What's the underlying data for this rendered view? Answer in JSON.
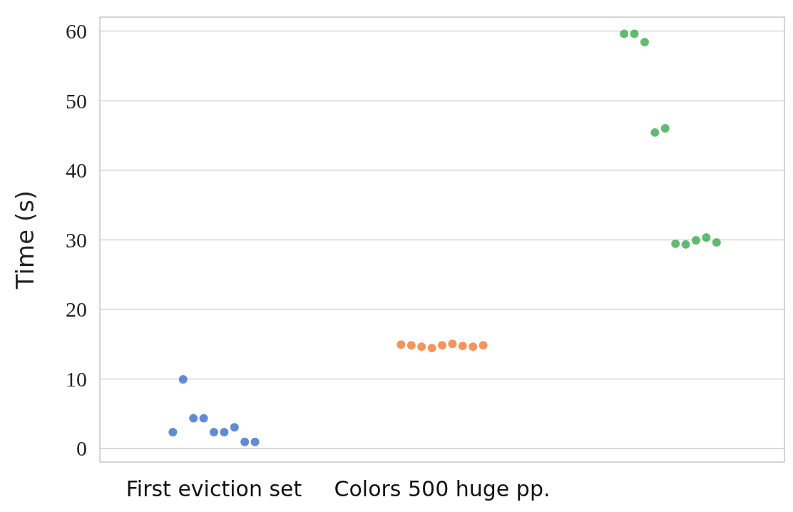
{
  "chart_data": {
    "type": "scatter",
    "ylabel": "Time (s)",
    "categories": [
      "First eviction set",
      "Colors 500 huge pp.",
      null
    ],
    "series": [
      {
        "color": "#3a6fc9",
        "x": [
          "First eviction set",
          "First eviction set",
          "First eviction set",
          "First eviction set",
          "First eviction set",
          "First eviction set",
          "First eviction set",
          "First eviction set",
          "First eviction set"
        ],
        "values": [
          2.3,
          9.9,
          4.3,
          4.3,
          2.3,
          2.3,
          3.0,
          0.9,
          0.9
        ]
      },
      {
        "color": "#f07a35",
        "x": [
          "Colors 500 huge pp.",
          "Colors 500 huge pp.",
          "Colors 500 huge pp.",
          "Colors 500 huge pp.",
          "Colors 500 huge pp.",
          "Colors 500 huge pp.",
          "Colors 500 huge pp.",
          "Colors 500 huge pp.",
          "Colors 500 huge pp."
        ],
        "values": [
          14.9,
          14.8,
          14.6,
          14.4,
          14.8,
          15.0,
          14.7,
          14.6,
          14.8
        ]
      },
      {
        "color": "#3aaa4f",
        "x": [
          null,
          null,
          null,
          null,
          null,
          null,
          null,
          null,
          null,
          null
        ],
        "values": [
          59.6,
          59.6,
          58.4,
          45.4,
          46.0,
          29.4,
          29.3,
          29.9,
          30.3,
          29.6
        ]
      }
    ],
    "ylim": [
      -2,
      62
    ],
    "yticks": [
      0,
      10,
      20,
      30,
      40,
      50,
      60
    ],
    "grid": "y",
    "marker": "circle"
  }
}
